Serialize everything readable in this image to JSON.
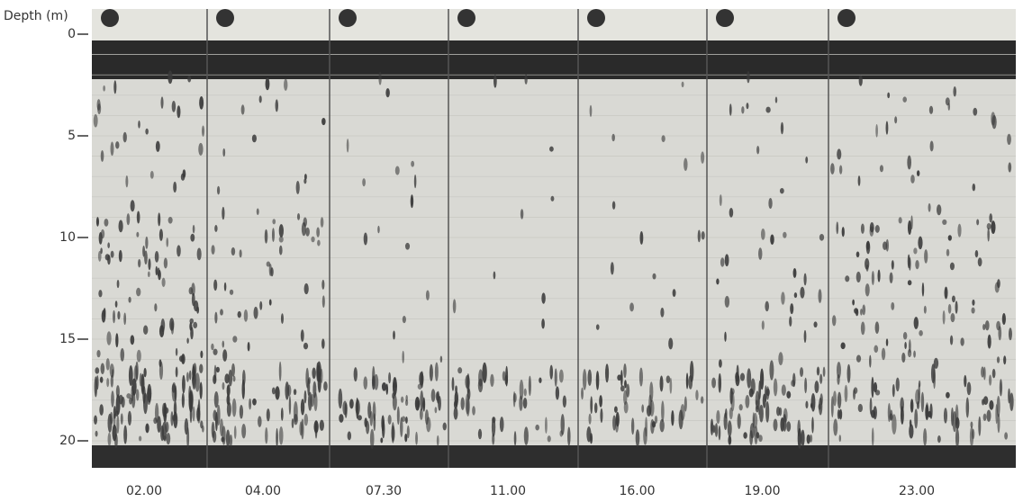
{
  "figure": {
    "axis_label": "Depth (m)",
    "depth_ticks": [
      "0",
      "5",
      "10",
      "15",
      "20"
    ],
    "time_labels": [
      "02.00",
      "04.00",
      "07.30",
      "11.00",
      "16.00",
      "19.00",
      "23.00"
    ]
  }
}
